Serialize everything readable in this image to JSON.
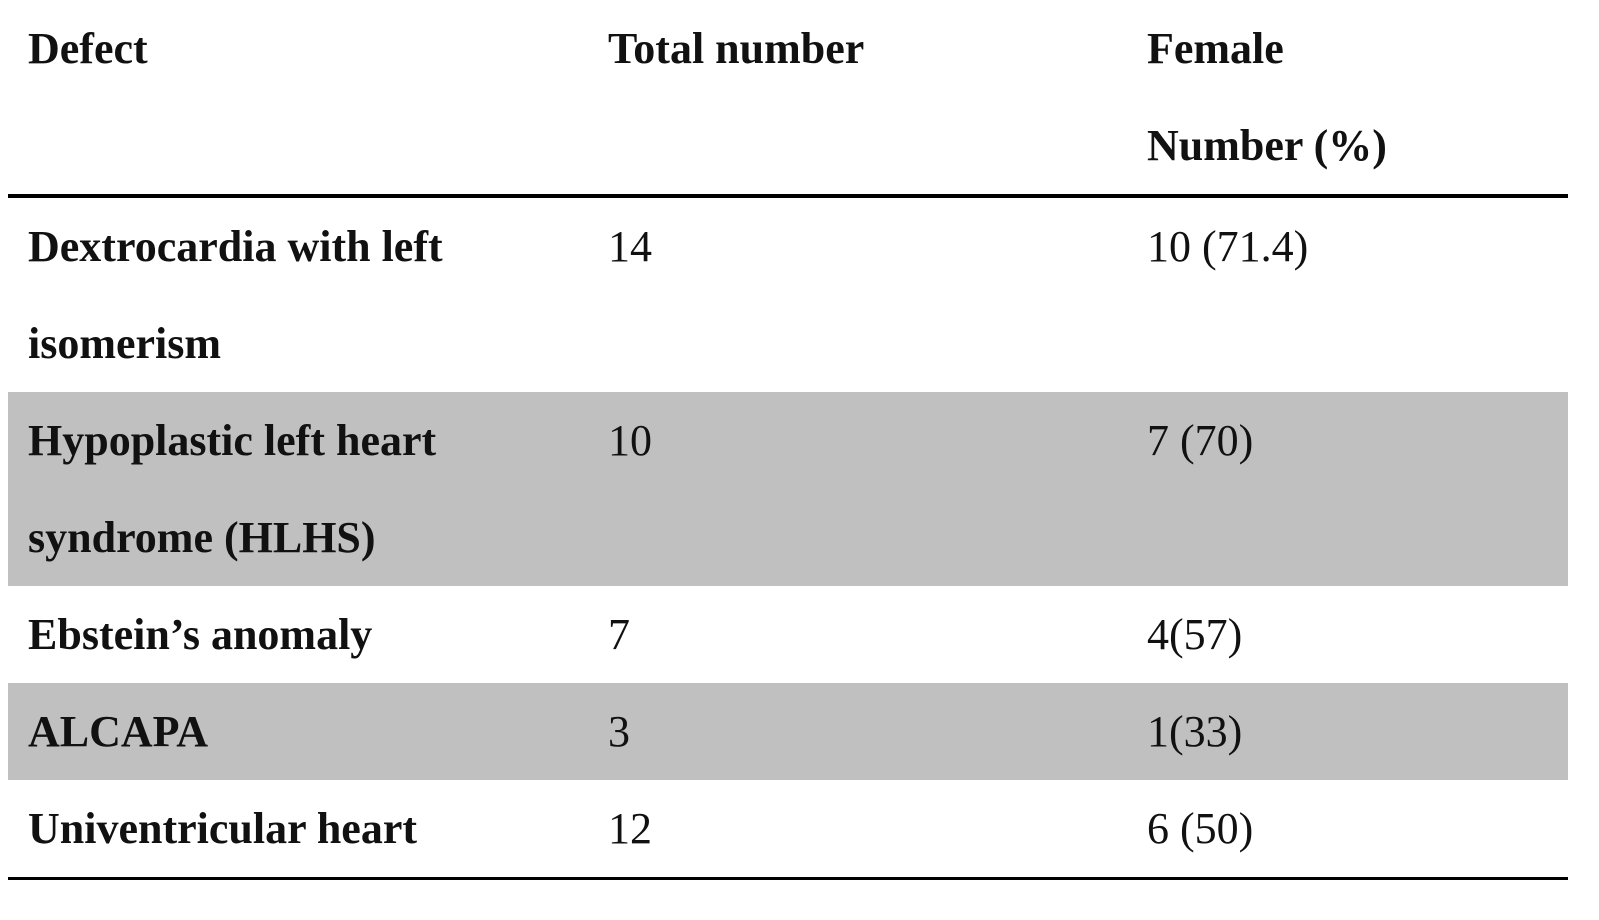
{
  "table": {
    "header": [
      "Defect",
      "Total number",
      "Female Number (%)"
    ],
    "rows": [
      [
        "Dextrocardia with left isomerism",
        14,
        "10 (71.4)"
      ],
      [
        "Hypoplastic left heart syndrome (HLHS)",
        10,
        "7 (70)"
      ],
      [
        "Ebstein’s anomaly",
        7,
        "4(57)"
      ],
      [
        "ALCAPA",
        3,
        "1(33)"
      ],
      [
        "Univentricular heart",
        12,
        "6 (50)"
      ]
    ]
  }
}
